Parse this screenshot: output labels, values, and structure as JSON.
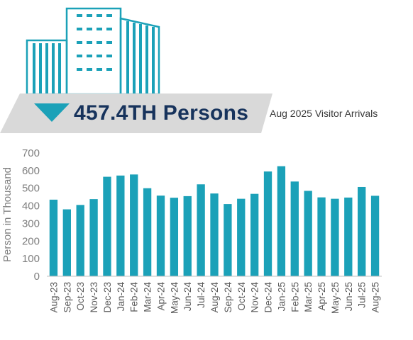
{
  "banner": {
    "headline": "457.4TH Persons",
    "subtitle": "Aug 2025 Visitor Arrivals"
  },
  "colors": {
    "bar": "#1ba1b8",
    "headline": "#17335c",
    "banner_bg": "#d9d9d9",
    "arrow": "#1ba1b8",
    "building": "#1ba1b8"
  },
  "icons": [
    "office-buildings-icon",
    "down-arrow-icon"
  ],
  "chart_data": {
    "type": "bar",
    "ylabel": "Person in Thousand",
    "xlabel": "",
    "ylim": [
      0,
      700
    ],
    "yticks": [
      0,
      100,
      200,
      300,
      400,
      500,
      600,
      700
    ],
    "grid": false,
    "categories": [
      "Aug-23",
      "Sep-23",
      "Oct-23",
      "Nov-23",
      "Dec-23",
      "Jan-24",
      "Feb-24",
      "Mar-24",
      "Apr-24",
      "May-24",
      "Jun-24",
      "Jul-24",
      "Aug-24",
      "Sep-24",
      "Oct-24",
      "Nov-24",
      "Dec-24",
      "Jan-25",
      "Feb-25",
      "Mar-25",
      "Apr-25",
      "May-25",
      "Jun-25",
      "Jul-25",
      "Aug-25"
    ],
    "values": [
      435,
      380,
      405,
      438,
      565,
      572,
      578,
      500,
      458,
      446,
      455,
      522,
      470,
      410,
      440,
      468,
      595,
      625,
      538,
      485,
      448,
      440,
      447,
      507,
      457
    ]
  }
}
